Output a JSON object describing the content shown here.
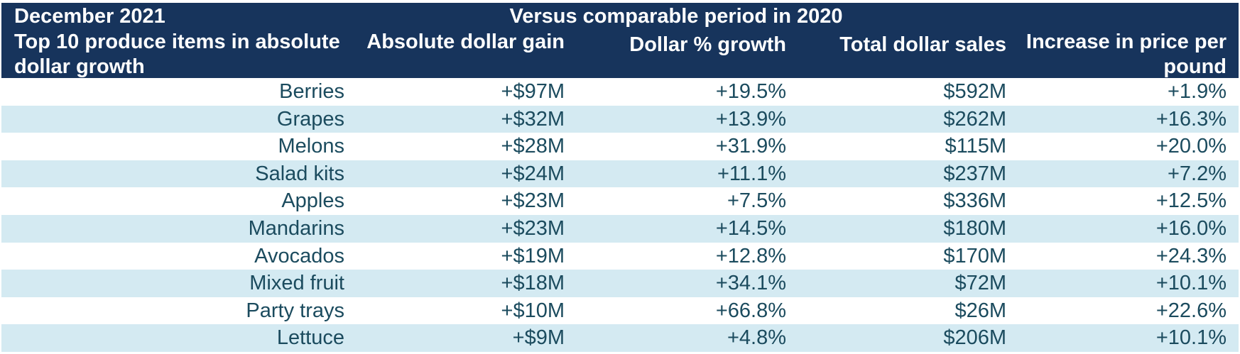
{
  "header": {
    "period": "December 2021",
    "comparison": "Versus comparable period in 2020",
    "columns": [
      "Top 10 produce items in absolute dollar growth",
      "Absolute dollar gain",
      "Dollar % growth",
      "Total dollar sales",
      "Increase in price per pound"
    ]
  },
  "colors": {
    "header_bg": "#17345c",
    "header_text": "#ffffff",
    "row_alt_bg": "#d4eaf2",
    "row_text": "#1b4b5e"
  },
  "chart_data": {
    "type": "table",
    "title": "December 2021",
    "subtitle": "Versus comparable period in 2020",
    "columns": [
      "Top 10 produce items in absolute dollar growth",
      "Absolute dollar gain",
      "Dollar % growth",
      "Total dollar sales",
      "Increase in price per pound"
    ],
    "rows": [
      [
        "Berries",
        "+$97M",
        "+19.5%",
        "$592M",
        "+1.9%"
      ],
      [
        "Grapes",
        "+$32M",
        "+13.9%",
        "$262M",
        "+16.3%"
      ],
      [
        "Melons",
        "+$28M",
        "+31.9%",
        "$115M",
        "+20.0%"
      ],
      [
        "Salad kits",
        "+$24M",
        "+11.1%",
        "$237M",
        "+7.2%"
      ],
      [
        "Apples",
        "+$23M",
        "+7.5%",
        "$336M",
        "+12.5%"
      ],
      [
        "Mandarins",
        "+$23M",
        "+14.5%",
        "$180M",
        "+16.0%"
      ],
      [
        "Avocados",
        "+$19M",
        "+12.8%",
        "$170M",
        "+24.3%"
      ],
      [
        "Mixed fruit",
        "+$18M",
        "+34.1%",
        "$72M",
        "+10.1%"
      ],
      [
        "Party trays",
        "+$10M",
        "+66.8%",
        "$26M",
        "+22.6%"
      ],
      [
        "Lettuce",
        "+$9M",
        "+4.8%",
        "$206M",
        "+10.1%"
      ]
    ]
  }
}
